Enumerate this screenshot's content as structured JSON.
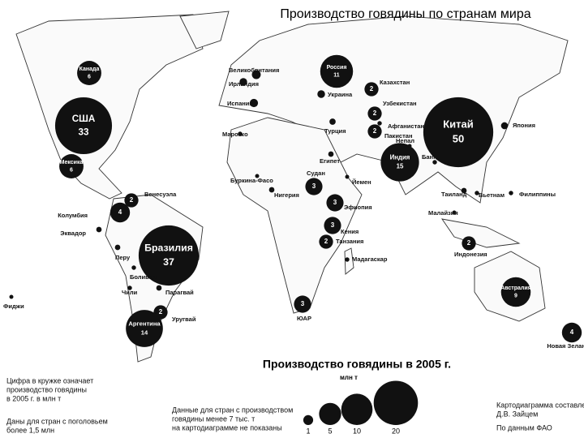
{
  "title": "Производство говядины по странам мира",
  "countries": [
    {
      "name": "Канада",
      "value": 6
    },
    {
      "name": "США",
      "value": 33
    },
    {
      "name": "Мексика",
      "value": 6
    },
    {
      "name": "Колумбия",
      "value": 4
    },
    {
      "name": "Венесуэла",
      "value": 2
    },
    {
      "name": "Бразилия",
      "value": 37
    },
    {
      "name": "Уругвай",
      "value": 2
    },
    {
      "name": "Аргентина",
      "value": 14
    },
    {
      "name": "Россия",
      "value": 11
    },
    {
      "name": "Казахстан",
      "value": 2
    },
    {
      "name": "Узбекистан",
      "value": 2
    },
    {
      "name": "Пакистан",
      "value": 2
    },
    {
      "name": "Индия",
      "value": 15
    },
    {
      "name": "Китай",
      "value": 50
    },
    {
      "name": "Индонезия",
      "value": 2
    },
    {
      "name": "Судан",
      "value": 3
    },
    {
      "name": "Эфиопия",
      "value": 3
    },
    {
      "name": "Кения",
      "value": 3
    },
    {
      "name": "Танзания",
      "value": 2
    },
    {
      "name": "ЮАР",
      "value": 3
    },
    {
      "name": "Австралия",
      "value": 9
    },
    {
      "name": "Новая Зеландия",
      "value": 4
    }
  ],
  "small_countries": [
    {
      "name": "Эквадор",
      "value": 0.3
    },
    {
      "name": "Перу",
      "value": 0.3
    },
    {
      "name": "Боливия",
      "value": 0.2
    },
    {
      "name": "Чили",
      "value": 0.2
    },
    {
      "name": "Парагвай",
      "value": 0.3
    },
    {
      "name": "Фиджи",
      "value": 0.02
    },
    {
      "name": "Великобритания",
      "value": 0.8
    },
    {
      "name": "Ирландия",
      "value": 0.6
    },
    {
      "name": "Испания",
      "value": 0.7
    },
    {
      "name": "Марокко",
      "value": 0.2
    },
    {
      "name": "Украина",
      "value": 0.6
    },
    {
      "name": "Афганистан",
      "value": 0.2
    },
    {
      "name": "Турция",
      "value": 0.4
    },
    {
      "name": "Египет",
      "value": 0.3
    },
    {
      "name": "Непал",
      "value": 0.1
    },
    {
      "name": "Банг.",
      "value": 0.2
    },
    {
      "name": "Япония",
      "value": 0.5
    },
    {
      "name": "Таиланд",
      "value": 0.3
    },
    {
      "name": "Вьетнам",
      "value": 0.2
    },
    {
      "name": "Филиппины",
      "value": 0.2
    },
    {
      "name": "Малайзия",
      "value": 0.02
    },
    {
      "name": "Йемен",
      "value": 0.1
    },
    {
      "name": "Буркина-Фасо",
      "value": 0.1
    },
    {
      "name": "Нигерия",
      "value": 0.3
    },
    {
      "name": "Мадагаскар",
      "value": 0.2
    }
  ],
  "legend": {
    "title": "Производство говядины в 2005 г.",
    "unit": "млн т",
    "sizes": [
      1,
      5,
      10,
      20
    ]
  },
  "notes": {
    "circle_note": [
      "Цифра в кружке означает",
      "производство говядины",
      "в 2005 г. в млн т"
    ],
    "herd_note": [
      "Даны для стран с поголовьем",
      "более 1,5 млн"
    ],
    "threshold_note": [
      "Данные для стран с производством",
      "говядины менее 7 тыс. т",
      "на картодиаграмме не показаны"
    ],
    "author": [
      "Картодиаграмма составлена",
      "Д.В. Зайцем"
    ],
    "source": "По данным ФАО"
  }
}
